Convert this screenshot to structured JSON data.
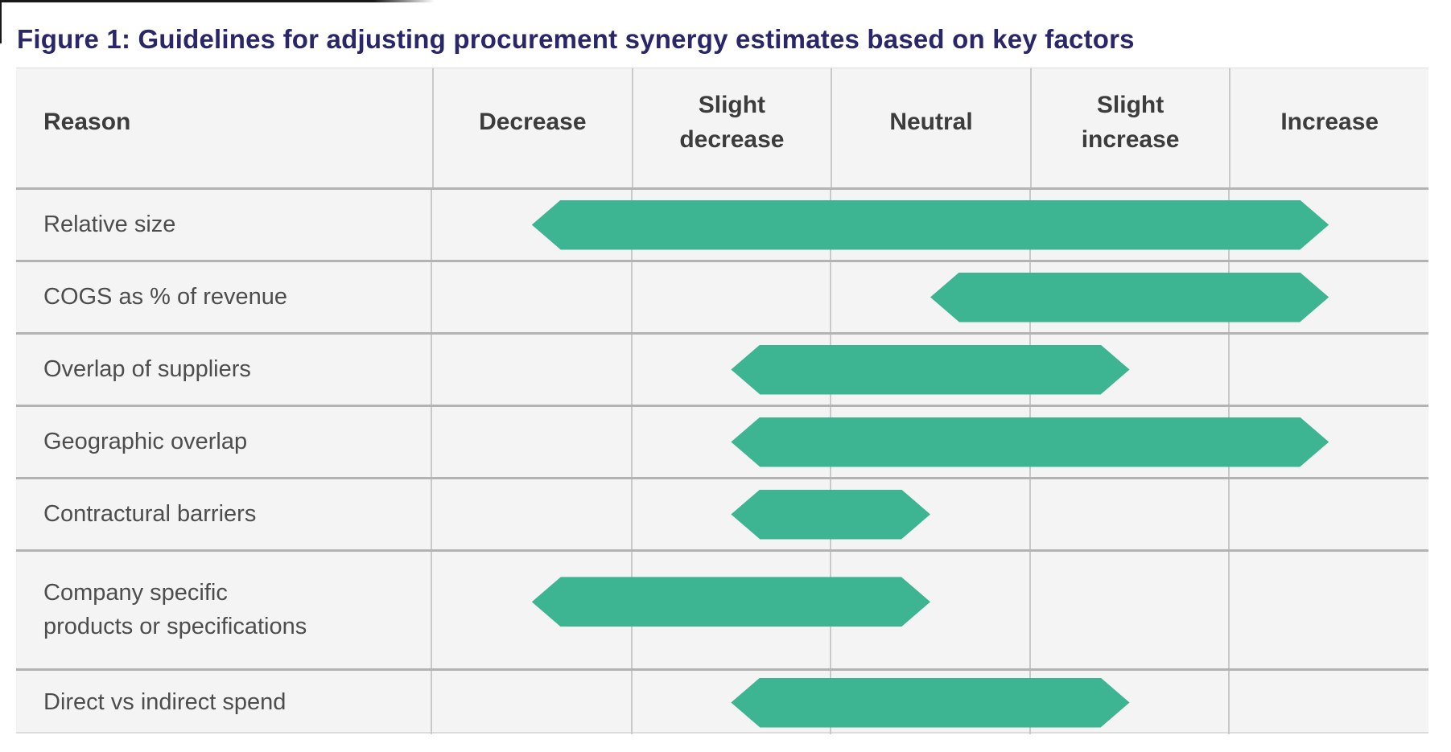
{
  "figure": {
    "title": "Figure 1: Guidelines for adjusting procurement synergy estimates based on key factors"
  },
  "table": {
    "reason_header": "Reason",
    "columns": [
      "Decrease",
      "Slight decrease",
      "Neutral",
      "Slight increase",
      "Increase"
    ],
    "rows": [
      {
        "label": "Relative size",
        "start": "Decrease",
        "end": "Increase"
      },
      {
        "label": "COGS as % of revenue",
        "start": "Neutral",
        "end": "Increase"
      },
      {
        "label": "Overlap of suppliers",
        "start": "Slight decrease",
        "end": "Slight increase"
      },
      {
        "label": "Geographic overlap",
        "start": "Slight decrease",
        "end": "Increase"
      },
      {
        "label": "Contractural barriers",
        "start": "Slight decrease",
        "end": "Neutral"
      },
      {
        "label": "Company specific\nproducts or specifications",
        "start": "Decrease",
        "end": "Neutral"
      },
      {
        "label": "Direct vs indirect spend",
        "start": "Slight decrease",
        "end": "Slight increase"
      }
    ]
  },
  "colors": {
    "bar": "#3db492",
    "title": "#29266a",
    "header_text": "#3c3c3c",
    "label_text": "#4d4d4d",
    "table_background": "#f4f4f4",
    "grid_line_vertical": "#c9c9c9",
    "grid_line_horizontal": "#b3b3b3"
  },
  "chart_data": {
    "type": "bar",
    "subtype": "horizontal_range",
    "title": "Figure 1: Guidelines for adjusting procurement synergy estimates based on key factors",
    "row_header": "Reason",
    "x_categories": [
      "Decrease",
      "Slight decrease",
      "Neutral",
      "Slight increase",
      "Increase"
    ],
    "y_categories": [
      "Relative size",
      "COGS as % of revenue",
      "Overlap of suppliers",
      "Geographic overlap",
      "Contractural barriers",
      "Company specific products or specifications",
      "Direct vs indirect spend"
    ],
    "ranges": [
      {
        "reason": "Relative size",
        "from": "Decrease",
        "to": "Increase"
      },
      {
        "reason": "COGS as % of revenue",
        "from": "Neutral",
        "to": "Increase"
      },
      {
        "reason": "Overlap of suppliers",
        "from": "Slight decrease",
        "to": "Slight increase"
      },
      {
        "reason": "Geographic overlap",
        "from": "Slight decrease",
        "to": "Increase"
      },
      {
        "reason": "Contractural barriers",
        "from": "Slight decrease",
        "to": "Neutral"
      },
      {
        "reason": "Company specific products or specifications",
        "from": "Decrease",
        "to": "Neutral"
      },
      {
        "reason": "Direct vs indirect spend",
        "from": "Slight decrease",
        "to": "Slight increase"
      }
    ],
    "bar_color": "#3db492",
    "bar_shape": "hexagon-pointed-both-ends",
    "legend": false,
    "grid": true,
    "xlabel": "",
    "ylabel": ""
  }
}
